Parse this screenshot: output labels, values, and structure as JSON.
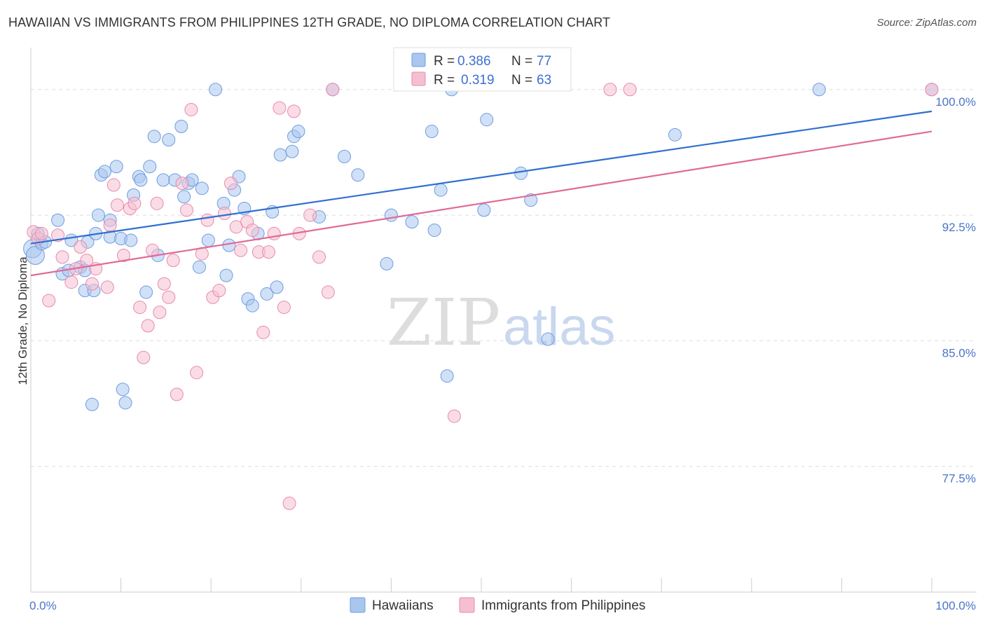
{
  "title": "HAWAIIAN VS IMMIGRANTS FROM PHILIPPINES 12TH GRADE, NO DIPLOMA CORRELATION CHART",
  "source": "Source: ZipAtlas.com",
  "watermark": {
    "zip": "ZIP",
    "atlas": "atlas"
  },
  "legend_box": {
    "r_label": "R =",
    "n_label": "N =",
    "rows": [
      {
        "r": "0.386",
        "n": "77"
      },
      {
        "r": "0.319",
        "n": "63"
      }
    ]
  },
  "colors": {
    "hawaiians_fill": "#a9c6ef",
    "hawaiians_stroke": "#6e9de0",
    "hawaiians_line": "#2f6fcf",
    "philippines_fill": "#f6bfd1",
    "philippines_stroke": "#e88aaa",
    "philippines_line": "#e06a96",
    "tick_label": "#4a74c9",
    "grid": "#dddddd"
  },
  "chart_data": {
    "type": "scatter",
    "title": "HAWAIIAN VS IMMIGRANTS FROM PHILIPPINES 12TH GRADE, NO DIPLOMA CORRELATION CHART",
    "xlabel": "",
    "ylabel": "12th Grade, No Diploma",
    "xlim": [
      0,
      100
    ],
    "ylim": [
      70,
      102.5
    ],
    "x_tick_labels": [
      "0.0%",
      "100.0%"
    ],
    "y_ticks": [
      77.5,
      85.0,
      92.5,
      100.0
    ],
    "y_tick_labels": [
      "77.5%",
      "85.0%",
      "92.5%",
      "100.0%"
    ],
    "grid": true,
    "legend_position": "bottom",
    "series": [
      {
        "name": "Hawaiians",
        "r": 0.386,
        "n": 77,
        "trend": {
          "x": [
            0,
            100
          ],
          "y": [
            90.8,
            98.7
          ]
        },
        "points": [
          [
            0.2,
            90.5
          ],
          [
            0.5,
            90.1
          ],
          [
            0.8,
            91.4
          ],
          [
            1.2,
            90.8
          ],
          [
            1.6,
            90.9
          ],
          [
            3,
            92.2
          ],
          [
            3.5,
            89
          ],
          [
            4.2,
            89.2
          ],
          [
            4.5,
            91
          ],
          [
            5.5,
            89.4
          ],
          [
            6,
            89.2
          ],
          [
            6,
            88
          ],
          [
            6.3,
            90.9
          ],
          [
            6.8,
            81.2
          ],
          [
            7,
            88
          ],
          [
            7.2,
            91.4
          ],
          [
            7.5,
            92.5
          ],
          [
            7.8,
            94.9
          ],
          [
            8.2,
            95.1
          ],
          [
            8.8,
            91.2
          ],
          [
            8.8,
            92.2
          ],
          [
            9.5,
            95.4
          ],
          [
            10,
            91.1
          ],
          [
            10.2,
            82.1
          ],
          [
            10.5,
            81.3
          ],
          [
            11.1,
            91
          ],
          [
            11.4,
            93.7
          ],
          [
            12,
            94.8
          ],
          [
            12.2,
            94.6
          ],
          [
            12.8,
            87.9
          ],
          [
            13.2,
            95.4
          ],
          [
            13.7,
            97.2
          ],
          [
            14.1,
            90.1
          ],
          [
            14.7,
            94.6
          ],
          [
            15.3,
            97
          ],
          [
            16,
            94.6
          ],
          [
            16.7,
            97.8
          ],
          [
            17,
            93.6
          ],
          [
            17.5,
            94.4
          ],
          [
            17.9,
            94.6
          ],
          [
            18.7,
            89.4
          ],
          [
            19,
            94.1
          ],
          [
            19.7,
            91
          ],
          [
            20.5,
            100
          ],
          [
            21.4,
            93.2
          ],
          [
            21.7,
            88.9
          ],
          [
            22,
            90.7
          ],
          [
            22.6,
            94
          ],
          [
            23.1,
            94.8
          ],
          [
            23.7,
            92.9
          ],
          [
            24.1,
            87.5
          ],
          [
            24.6,
            87.1
          ],
          [
            25.2,
            91.4
          ],
          [
            26.2,
            87.8
          ],
          [
            26.8,
            92.7
          ],
          [
            27.3,
            88.2
          ],
          [
            27.7,
            96.1
          ],
          [
            29,
            96.3
          ],
          [
            29.2,
            97.2
          ],
          [
            29.7,
            97.5
          ],
          [
            32,
            92.4
          ],
          [
            33.5,
            100
          ],
          [
            34.8,
            96
          ],
          [
            36.3,
            94.9
          ],
          [
            39.5,
            89.6
          ],
          [
            40,
            92.5
          ],
          [
            42.3,
            92.1
          ],
          [
            44.5,
            97.5
          ],
          [
            44.8,
            91.6
          ],
          [
            45.5,
            94
          ],
          [
            46.2,
            82.9
          ],
          [
            46.7,
            100
          ],
          [
            50.3,
            92.8
          ],
          [
            50.6,
            98.2
          ],
          [
            54.4,
            95
          ],
          [
            55.5,
            93.4
          ],
          [
            57.4,
            85.1
          ],
          [
            71.5,
            97.3
          ],
          [
            87.5,
            100
          ],
          [
            100,
            100
          ]
        ]
      },
      {
        "name": "Immigrants from Philippines",
        "r": 0.319,
        "n": 63,
        "trend": {
          "x": [
            0,
            100
          ],
          "y": [
            88.9,
            97.5
          ]
        },
        "points": [
          [
            0.3,
            91.5
          ],
          [
            0.8,
            91.1
          ],
          [
            1.2,
            91.4
          ],
          [
            2,
            87.4
          ],
          [
            3,
            91.3
          ],
          [
            3.5,
            90
          ],
          [
            4.5,
            88.5
          ],
          [
            5,
            89.3
          ],
          [
            5.5,
            90.6
          ],
          [
            6.2,
            89.8
          ],
          [
            6.8,
            88.4
          ],
          [
            7.2,
            89.3
          ],
          [
            8.5,
            88.2
          ],
          [
            8.8,
            91.9
          ],
          [
            9.2,
            94.3
          ],
          [
            9.6,
            93.1
          ],
          [
            10.3,
            90.1
          ],
          [
            11,
            92.9
          ],
          [
            11.5,
            93.2
          ],
          [
            12.1,
            87
          ],
          [
            12.5,
            84
          ],
          [
            13,
            85.9
          ],
          [
            13.5,
            90.4
          ],
          [
            14,
            93.2
          ],
          [
            14.3,
            86.7
          ],
          [
            14.8,
            88.4
          ],
          [
            15.3,
            87.6
          ],
          [
            15.8,
            89.8
          ],
          [
            16.2,
            81.8
          ],
          [
            16.8,
            94.4
          ],
          [
            17.3,
            92.8
          ],
          [
            17.8,
            98.8
          ],
          [
            18.4,
            83.1
          ],
          [
            19,
            90.2
          ],
          [
            19.6,
            92.2
          ],
          [
            20.2,
            87.6
          ],
          [
            20.9,
            88
          ],
          [
            21.5,
            92.6
          ],
          [
            22.2,
            94.4
          ],
          [
            22.8,
            91.8
          ],
          [
            23.3,
            90.4
          ],
          [
            24,
            92.1
          ],
          [
            24.6,
            91.6
          ],
          [
            25.3,
            90.3
          ],
          [
            25.8,
            85.5
          ],
          [
            26.4,
            90.3
          ],
          [
            27,
            91.4
          ],
          [
            27.6,
            98.9
          ],
          [
            28.1,
            87
          ],
          [
            28.7,
            75.3
          ],
          [
            29.2,
            98.7
          ],
          [
            29.8,
            91.4
          ],
          [
            31,
            92.5
          ],
          [
            32,
            90
          ],
          [
            33,
            87.9
          ],
          [
            33.5,
            100
          ],
          [
            47,
            80.5
          ],
          [
            64.3,
            100
          ],
          [
            66.5,
            100
          ],
          [
            100,
            100
          ]
        ]
      }
    ]
  },
  "bottom_legend": [
    {
      "label": "Hawaiians"
    },
    {
      "label": "Immigrants from Philippines"
    }
  ]
}
